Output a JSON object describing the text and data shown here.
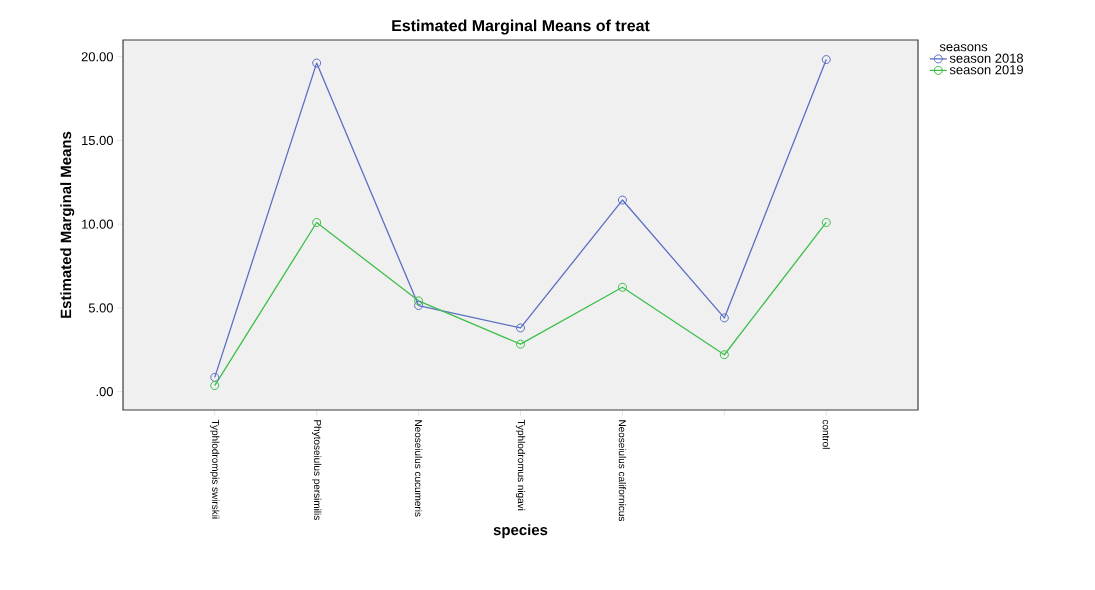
{
  "chart_data": {
    "type": "line",
    "title": "Estimated Marginal Means of treat",
    "xlabel": "species",
    "ylabel": "Estimated Marginal Means",
    "legend_title": "seasons",
    "categories": [
      "Typhlodrompis  swirskii",
      "Phytoseiulus  persimilis",
      "Neoseiulus  cucumeris",
      "Typhlodromus  nigavi",
      "Neoseiulus  californicus",
      null,
      "control"
    ],
    "series": [
      {
        "name": "season 2018",
        "color": "#5a6fc4",
        "values": [
          0.85,
          19.62,
          5.14,
          3.8,
          11.44,
          4.4,
          19.83
        ]
      },
      {
        "name": "season 2019",
        "color": "#3dbf4a",
        "values": [
          0.36,
          10.1,
          5.42,
          2.83,
          6.23,
          2.2,
          10.1
        ]
      }
    ],
    "ylim": [
      -1.1,
      21
    ],
    "yticks": [
      {
        "value": 0,
        "label": ".00"
      },
      {
        "value": 5,
        "label": "5.00"
      },
      {
        "value": 10,
        "label": "10.00"
      },
      {
        "value": 15,
        "label": "15.00"
      },
      {
        "value": 20,
        "label": "20.00"
      }
    ],
    "grid": false,
    "legend": "right",
    "marker": "circle",
    "line_style": "solid"
  }
}
